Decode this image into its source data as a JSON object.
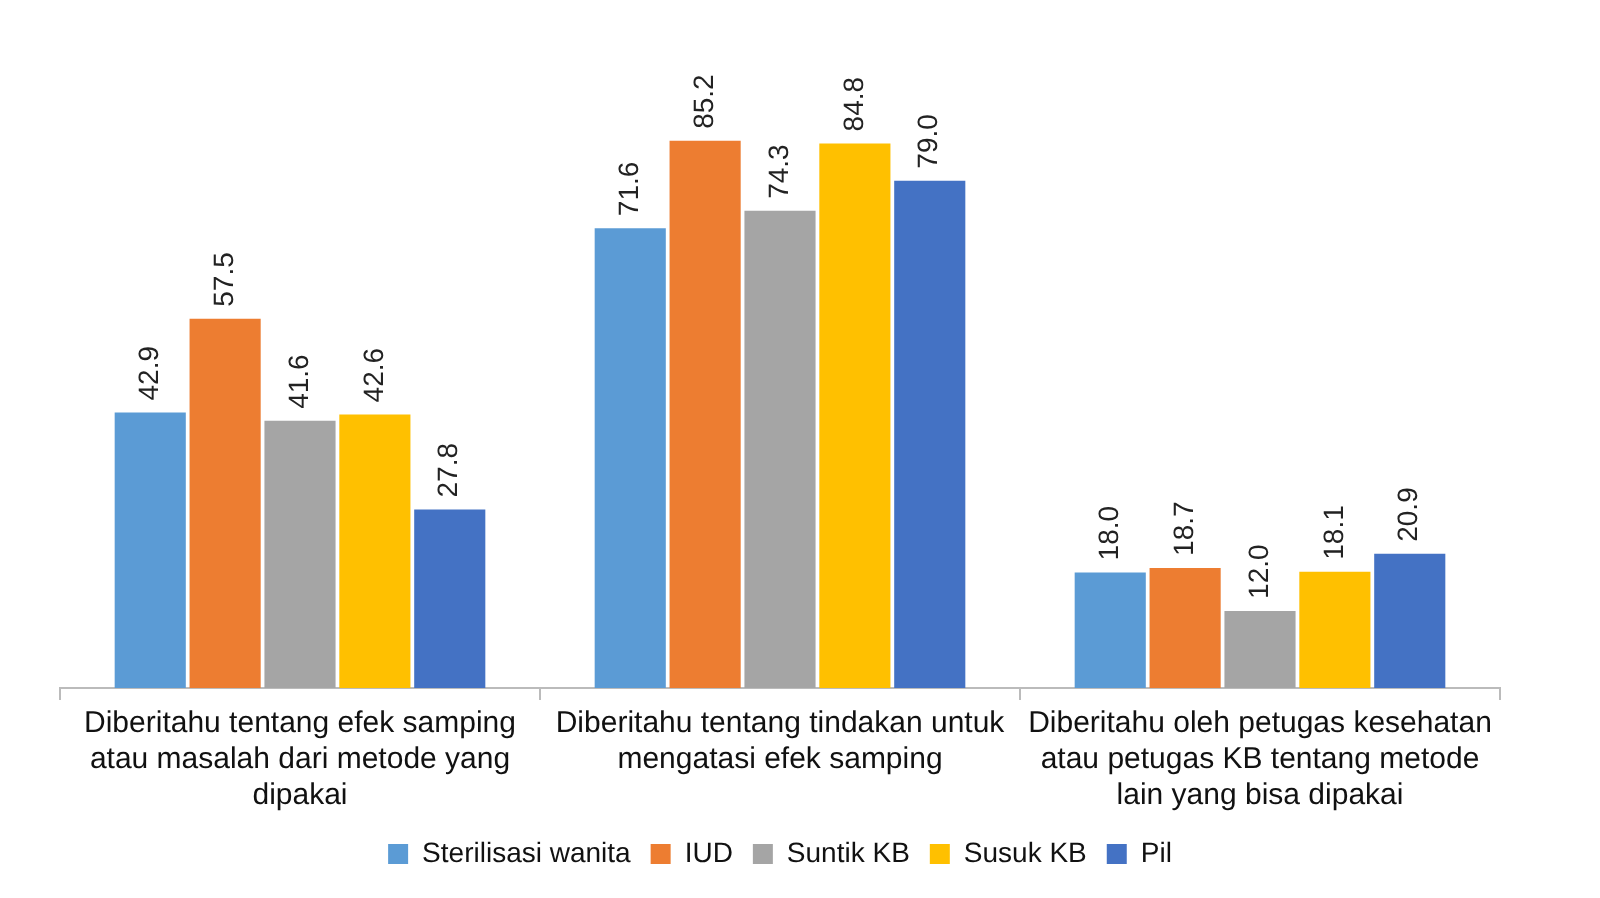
{
  "chart_data": {
    "type": "bar",
    "categories": [
      "Diberitahu tentang efek samping atau masalah dari metode yang dipakai",
      "Diberitahu tentang tindakan untuk mengatasi efek samping",
      "Diberitahu oleh petugas kesehatan atau petugas KB tentang metode lain yang bisa dipakai"
    ],
    "series": [
      {
        "name": "Sterilisasi wanita",
        "color": "#5b9bd5",
        "values": [
          42.9,
          71.6,
          18.0
        ],
        "value_labels": [
          "42.9",
          "71.6",
          "18.0"
        ]
      },
      {
        "name": "IUD",
        "color": "#ed7d31",
        "values": [
          57.5,
          85.2,
          18.7
        ],
        "value_labels": [
          "57.5",
          "85.2",
          "18.7"
        ]
      },
      {
        "name": "Suntik KB",
        "color": "#a5a5a5",
        "values": [
          41.6,
          74.3,
          12.0
        ],
        "value_labels": [
          "41.6",
          "74.3",
          "12.0"
        ]
      },
      {
        "name": "Susuk KB",
        "color": "#ffc000",
        "values": [
          42.6,
          84.8,
          18.1
        ],
        "value_labels": [
          "42.6",
          "84.8",
          "18.1"
        ]
      },
      {
        "name": "Pil",
        "color": "#4472c4",
        "values": [
          27.8,
          79.0,
          20.9
        ],
        "value_labels": [
          "27.8",
          "79.0",
          "20.9"
        ]
      }
    ],
    "legend": "bottom",
    "grid": false
  }
}
